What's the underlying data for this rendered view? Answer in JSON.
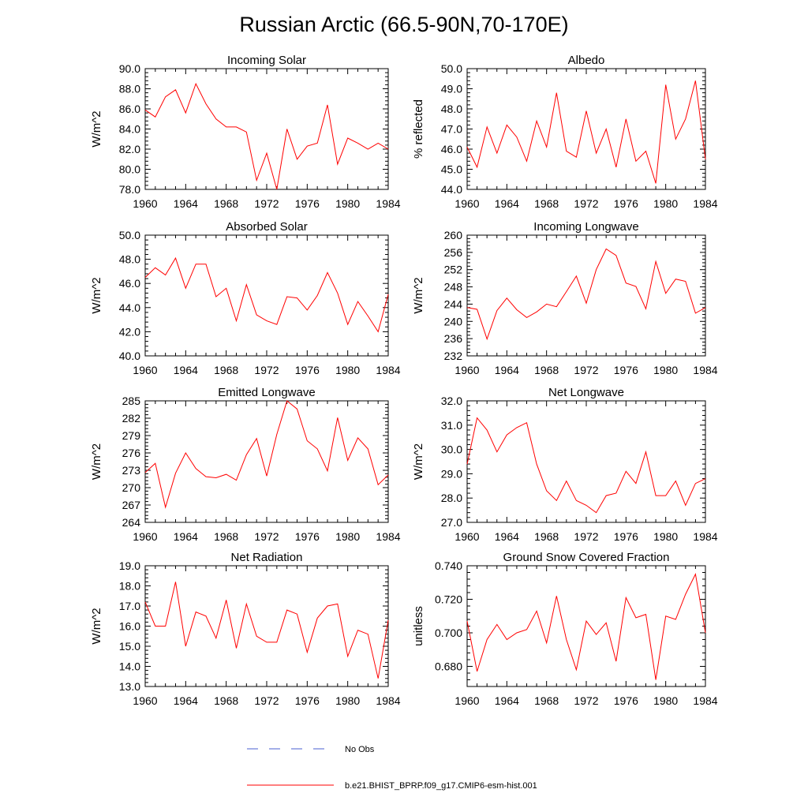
{
  "figure": {
    "title": "Russian Arctic (66.5-90N,70-170E)"
  },
  "legend": {
    "items": [
      {
        "label": "No Obs",
        "color": "#4a5fd0",
        "style": "dashed"
      },
      {
        "label": "b.e21.BHIST_BPRP.f09_g17.CMIP6-esm-hist.001",
        "color": "#ff0000",
        "style": "solid"
      }
    ]
  },
  "chart_data": [
    {
      "type": "line",
      "title": "Incoming Solar",
      "ylabel": "W/m^2",
      "xlim": [
        1960,
        1984
      ],
      "ylim": [
        78,
        90
      ],
      "xticks": [
        "1960",
        "1964",
        "1968",
        "1972",
        "1976",
        "1980",
        "1984"
      ],
      "yticks": [
        "78.0",
        "80.0",
        "82.0",
        "84.0",
        "86.0",
        "88.0",
        "90.0"
      ],
      "series": [
        {
          "name": "b.e21.BHIST_BPRP.f09_g17.CMIP6-esm-hist.001",
          "color": "#ff0000",
          "x": [
            1960,
            1961,
            1962,
            1963,
            1964,
            1965,
            1966,
            1967,
            1968,
            1969,
            1970,
            1971,
            1972,
            1973,
            1974,
            1975,
            1976,
            1977,
            1978,
            1979,
            1980,
            1981,
            1982,
            1983,
            1984
          ],
          "y": [
            85.9,
            85.2,
            87.2,
            87.9,
            85.6,
            88.5,
            86.5,
            85.0,
            84.2,
            84.2,
            83.7,
            78.9,
            81.6,
            78.0,
            84.0,
            81.0,
            82.3,
            82.6,
            86.4,
            80.5,
            83.1,
            82.6,
            82.0,
            82.6,
            82.0
          ]
        }
      ]
    },
    {
      "type": "line",
      "title": "Albedo",
      "ylabel": "% reflected",
      "xlim": [
        1960,
        1984
      ],
      "ylim": [
        44,
        50
      ],
      "xticks": [
        "1960",
        "1964",
        "1968",
        "1972",
        "1976",
        "1980",
        "1984"
      ],
      "yticks": [
        "44.0",
        "45.0",
        "46.0",
        "47.0",
        "48.0",
        "49.0",
        "50.0"
      ],
      "series": [
        {
          "name": "b.e21.BHIST_BPRP.f09_g17.CMIP6-esm-hist.001",
          "color": "#ff0000",
          "x": [
            1960,
            1961,
            1962,
            1963,
            1964,
            1965,
            1966,
            1967,
            1968,
            1969,
            1970,
            1971,
            1972,
            1973,
            1974,
            1975,
            1976,
            1977,
            1978,
            1979,
            1980,
            1981,
            1982,
            1983,
            1984
          ],
          "y": [
            46.1,
            45.1,
            47.1,
            45.8,
            47.2,
            46.6,
            45.4,
            47.4,
            46.1,
            48.8,
            45.9,
            45.6,
            47.9,
            45.8,
            47.0,
            45.1,
            47.5,
            45.4,
            45.9,
            44.3,
            49.2,
            46.5,
            47.5,
            49.4,
            45.5
          ]
        }
      ]
    },
    {
      "type": "line",
      "title": "Absorbed Solar",
      "ylabel": "W/m^2",
      "xlim": [
        1960,
        1984
      ],
      "ylim": [
        40,
        50
      ],
      "xticks": [
        "1960",
        "1964",
        "1968",
        "1972",
        "1976",
        "1980",
        "1984"
      ],
      "yticks": [
        "40.0",
        "42.0",
        "44.0",
        "46.0",
        "48.0",
        "50.0"
      ],
      "series": [
        {
          "name": "b.e21.BHIST_BPRP.f09_g17.CMIP6-esm-hist.001",
          "color": "#ff0000",
          "x": [
            1960,
            1961,
            1962,
            1963,
            1964,
            1965,
            1966,
            1967,
            1968,
            1969,
            1970,
            1971,
            1972,
            1973,
            1974,
            1975,
            1976,
            1977,
            1978,
            1979,
            1980,
            1981,
            1982,
            1983,
            1984
          ],
          "y": [
            46.5,
            47.3,
            46.7,
            48.1,
            45.6,
            47.6,
            47.6,
            44.9,
            45.6,
            42.9,
            45.9,
            43.4,
            42.9,
            42.6,
            44.9,
            44.8,
            43.8,
            45.0,
            46.9,
            45.2,
            42.6,
            44.5,
            43.3,
            42.0,
            45.1
          ]
        }
      ]
    },
    {
      "type": "line",
      "title": "Incoming Longwave",
      "ylabel": "W/m^2",
      "xlim": [
        1960,
        1984
      ],
      "ylim": [
        232,
        260
      ],
      "xticks": [
        "1960",
        "1964",
        "1968",
        "1972",
        "1976",
        "1980",
        "1984"
      ],
      "yticks": [
        "232",
        "236",
        "240",
        "244",
        "248",
        "252",
        "256",
        "260"
      ],
      "series": [
        {
          "name": "b.e21.BHIST_BPRP.f09_g17.CMIP6-esm-hist.001",
          "color": "#ff0000",
          "x": [
            1960,
            1961,
            1962,
            1963,
            1964,
            1965,
            1966,
            1967,
            1968,
            1969,
            1970,
            1971,
            1972,
            1973,
            1974,
            1975,
            1976,
            1977,
            1978,
            1979,
            1980,
            1981,
            1982,
            1983,
            1984
          ],
          "y": [
            243.2,
            242.8,
            235.9,
            242.5,
            245.4,
            242.7,
            240.9,
            242.2,
            244.0,
            243.4,
            246.9,
            250.5,
            244.2,
            252.0,
            256.8,
            255.3,
            248.9,
            248.1,
            242.9,
            253.9,
            246.5,
            249.8,
            249.3,
            241.9,
            243.2
          ]
        }
      ]
    },
    {
      "type": "line",
      "title": "Emitted Longwave",
      "ylabel": "W/m^2",
      "xlim": [
        1960,
        1984
      ],
      "ylim": [
        264,
        285
      ],
      "xticks": [
        "1960",
        "1964",
        "1968",
        "1972",
        "1976",
        "1980",
        "1984"
      ],
      "yticks": [
        "264",
        "267",
        "270",
        "273",
        "276",
        "279",
        "282",
        "285"
      ],
      "series": [
        {
          "name": "b.e21.BHIST_BPRP.f09_g17.CMIP6-esm-hist.001",
          "color": "#ff0000",
          "x": [
            1960,
            1961,
            1962,
            1963,
            1964,
            1965,
            1966,
            1967,
            1968,
            1969,
            1970,
            1971,
            1972,
            1973,
            1974,
            1975,
            1976,
            1977,
            1978,
            1979,
            1980,
            1981,
            1982,
            1983,
            1984
          ],
          "y": [
            272.6,
            274.2,
            266.6,
            272.5,
            276.0,
            273.3,
            271.9,
            271.7,
            272.3,
            271.3,
            275.7,
            278.5,
            272.0,
            279.2,
            285.0,
            283.6,
            278.1,
            276.7,
            272.9,
            282.1,
            274.7,
            278.6,
            276.7,
            270.5,
            272.2
          ]
        }
      ]
    },
    {
      "type": "line",
      "title": "Net Longwave",
      "ylabel": "W/m^2",
      "xlim": [
        1960,
        1984
      ],
      "ylim": [
        27,
        32
      ],
      "xticks": [
        "1960",
        "1964",
        "1968",
        "1972",
        "1976",
        "1980",
        "1984"
      ],
      "yticks": [
        "27.0",
        "28.0",
        "29.0",
        "30.0",
        "31.0",
        "32.0"
      ],
      "series": [
        {
          "name": "b.e21.BHIST_BPRP.f09_g17.CMIP6-esm-hist.001",
          "color": "#ff0000",
          "x": [
            1960,
            1961,
            1962,
            1963,
            1964,
            1965,
            1966,
            1967,
            1968,
            1969,
            1970,
            1971,
            1972,
            1973,
            1974,
            1975,
            1976,
            1977,
            1978,
            1979,
            1980,
            1981,
            1982,
            1983,
            1984
          ],
          "y": [
            29.4,
            31.3,
            30.8,
            29.9,
            30.6,
            30.9,
            31.1,
            29.4,
            28.3,
            27.9,
            28.7,
            27.9,
            27.7,
            27.4,
            28.1,
            28.2,
            29.1,
            28.6,
            29.9,
            28.1,
            28.1,
            28.7,
            27.7,
            28.6,
            28.8
          ]
        }
      ]
    },
    {
      "type": "line",
      "title": "Net Radiation",
      "ylabel": "W/m^2",
      "xlim": [
        1960,
        1984
      ],
      "ylim": [
        13,
        19
      ],
      "xticks": [
        "1960",
        "1964",
        "1968",
        "1972",
        "1976",
        "1980",
        "1984"
      ],
      "yticks": [
        "13.0",
        "14.0",
        "15.0",
        "16.0",
        "17.0",
        "18.0",
        "19.0"
      ],
      "series": [
        {
          "name": "b.e21.BHIST_BPRP.f09_g17.CMIP6-esm-hist.001",
          "color": "#ff0000",
          "x": [
            1960,
            1961,
            1962,
            1963,
            1964,
            1965,
            1966,
            1967,
            1968,
            1969,
            1970,
            1971,
            1972,
            1973,
            1974,
            1975,
            1976,
            1977,
            1978,
            1979,
            1980,
            1981,
            1982,
            1983,
            1984
          ],
          "y": [
            17.2,
            16.0,
            16.0,
            18.2,
            15.0,
            16.7,
            16.5,
            15.4,
            17.3,
            14.9,
            17.1,
            15.5,
            15.2,
            15.2,
            16.8,
            16.6,
            14.7,
            16.4,
            17.0,
            17.1,
            14.5,
            15.8,
            15.6,
            13.4,
            16.3
          ]
        }
      ]
    },
    {
      "type": "line",
      "title": "Ground Snow Covered Fraction",
      "ylabel": "unitless",
      "xlim": [
        1960,
        1984
      ],
      "ylim": [
        0.668,
        0.74
      ],
      "xticks": [
        "1960",
        "1964",
        "1968",
        "1972",
        "1976",
        "1980",
        "1984"
      ],
      "yticks": [
        "0.680",
        "0.700",
        "0.720",
        "0.740"
      ],
      "series": [
        {
          "name": "b.e21.BHIST_BPRP.f09_g17.CMIP6-esm-hist.001",
          "color": "#ff0000",
          "x": [
            1960,
            1961,
            1962,
            1963,
            1964,
            1965,
            1966,
            1967,
            1968,
            1969,
            1970,
            1971,
            1972,
            1973,
            1974,
            1975,
            1976,
            1977,
            1978,
            1979,
            1980,
            1981,
            1982,
            1983,
            1984
          ],
          "y": [
            0.707,
            0.677,
            0.696,
            0.705,
            0.696,
            0.7,
            0.702,
            0.713,
            0.694,
            0.722,
            0.696,
            0.678,
            0.707,
            0.699,
            0.706,
            0.683,
            0.721,
            0.709,
            0.711,
            0.672,
            0.71,
            0.708,
            0.723,
            0.735,
            0.7
          ]
        }
      ]
    }
  ]
}
